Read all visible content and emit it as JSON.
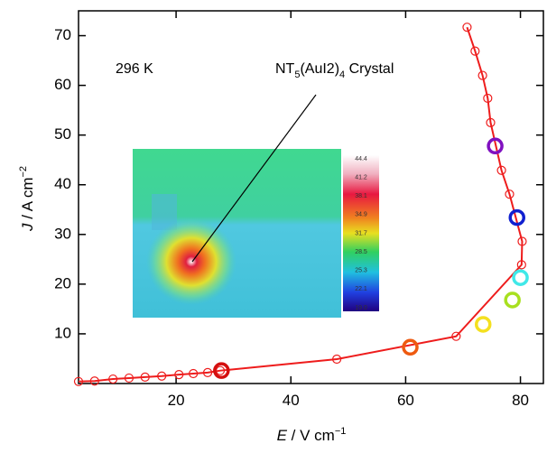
{
  "chart_data": {
    "type": "line",
    "x_label": {
      "symbol": "E",
      "unit": " / V cm",
      "exponent": "−1"
    },
    "y_label": {
      "symbol": "J",
      "unit": " / A cm",
      "exponent": "−2"
    },
    "xlim": [
      3,
      84
    ],
    "ylim": [
      0,
      75
    ],
    "xticks": [
      20,
      40,
      60,
      80
    ],
    "yticks": [
      10,
      20,
      30,
      40,
      50,
      60,
      70
    ],
    "series": [
      {
        "color": "#ee1c1c",
        "x": [
          3,
          5.8,
          9.0,
          11.8,
          14.6,
          17.5,
          20.5,
          23.0,
          25.5,
          27.7,
          48.0,
          68.8,
          80.2,
          80.3,
          78.1,
          76.7,
          74.8,
          74.3,
          73.4,
          72.1,
          70.7
        ],
        "values": [
          0.4,
          0.5,
          0.9,
          1.1,
          1.3,
          1.5,
          1.8,
          2.0,
          2.2,
          2.6,
          4.9,
          9.5,
          23.9,
          28.6,
          38.1,
          42.9,
          52.5,
          57.4,
          62.0,
          66.9,
          71.7
        ]
      }
    ],
    "highlights": {
      "x": [
        27.9,
        60.8,
        73.5,
        78.6,
        80.0,
        79.4,
        75.6
      ],
      "values": [
        2.6,
        7.3,
        11.9,
        16.8,
        21.3,
        33.4,
        47.8
      ],
      "colors": [
        "#d41010",
        "#ee5a10",
        "#f4e020",
        "#a8e020",
        "#40e8e8",
        "#1020d0",
        "#8010c0"
      ]
    },
    "annotations": {
      "temperature": "296 K",
      "crystal": [
        "NT",
        "5",
        "(AuI2)",
        "4",
        " Crystal"
      ]
    },
    "inset": {
      "colorbar_labels": [
        "44.4",
        "41.2",
        "38.1",
        "34.9",
        "31.7",
        "28.5",
        "25.3",
        "22.1",
        "19.0"
      ]
    }
  }
}
